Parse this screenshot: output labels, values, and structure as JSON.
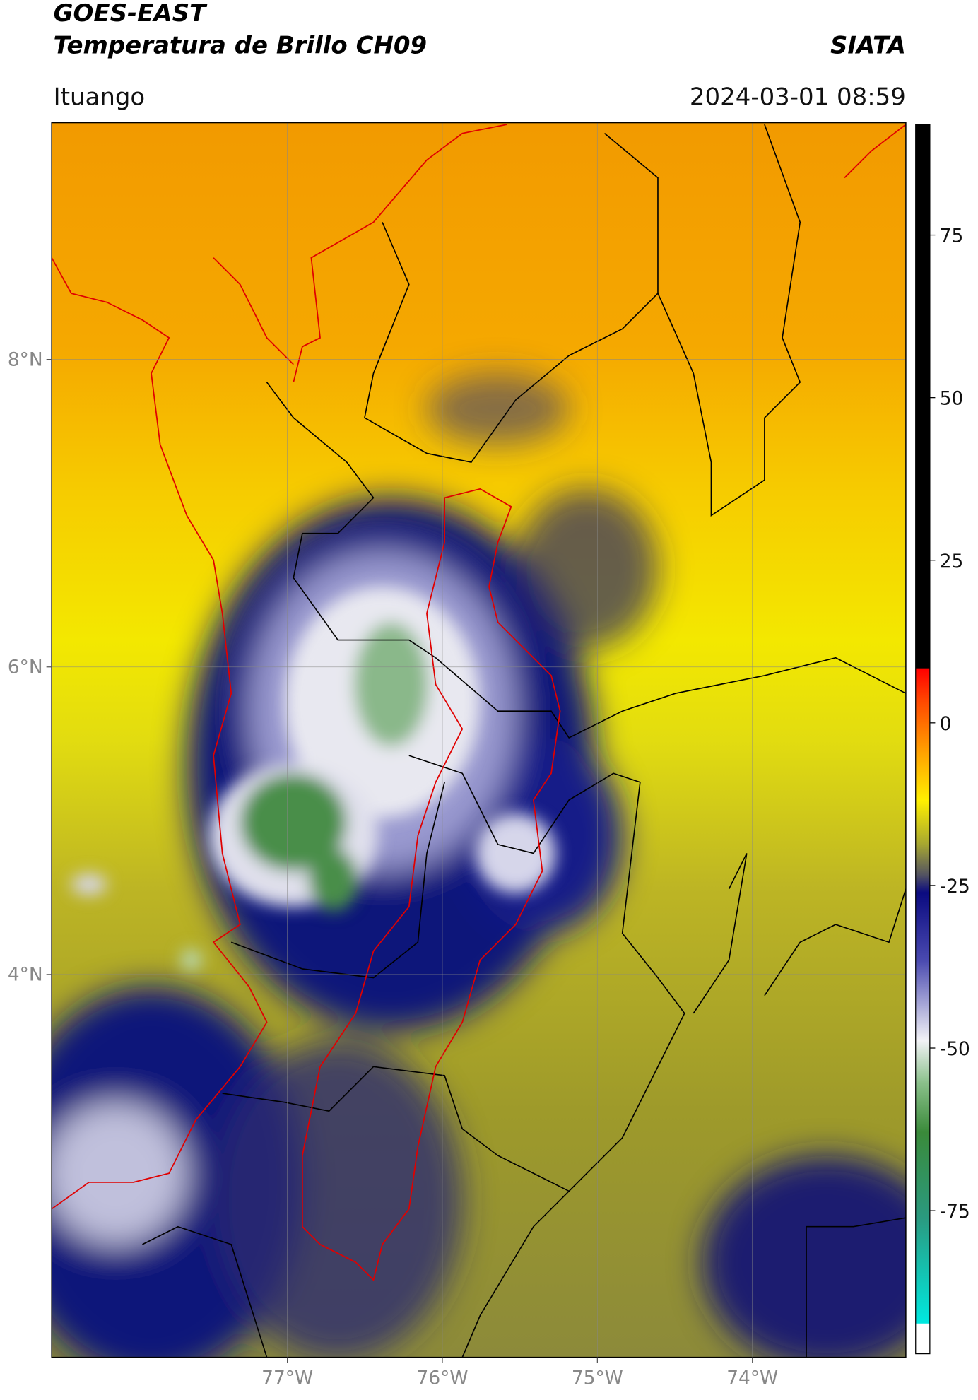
{
  "header": {
    "title": "GOES-EAST",
    "subtitle": "Temperatura de Brillo CH09",
    "source": "SIATA",
    "location": "Ituango",
    "timestamp": "2024-03-01 08:59"
  },
  "map": {
    "lon_range": [
      -78.52,
      -73.01
    ],
    "lat_range": [
      1.51,
      9.54
    ],
    "lon_ticks": [
      {
        "value": -77,
        "label": "77°W"
      },
      {
        "value": -76,
        "label": "76°W"
      },
      {
        "value": -75,
        "label": "75°W"
      },
      {
        "value": -74,
        "label": "74°W"
      }
    ],
    "lat_ticks": [
      {
        "value": 8,
        "label": "8°N"
      },
      {
        "value": 6,
        "label": "6°N"
      },
      {
        "value": 4,
        "label": "4°N"
      }
    ],
    "grid": true
  },
  "colorbar": {
    "range": [
      -97,
      92
    ],
    "ticks": [
      75,
      50,
      25,
      0,
      -25,
      -50,
      -75
    ]
  }
}
